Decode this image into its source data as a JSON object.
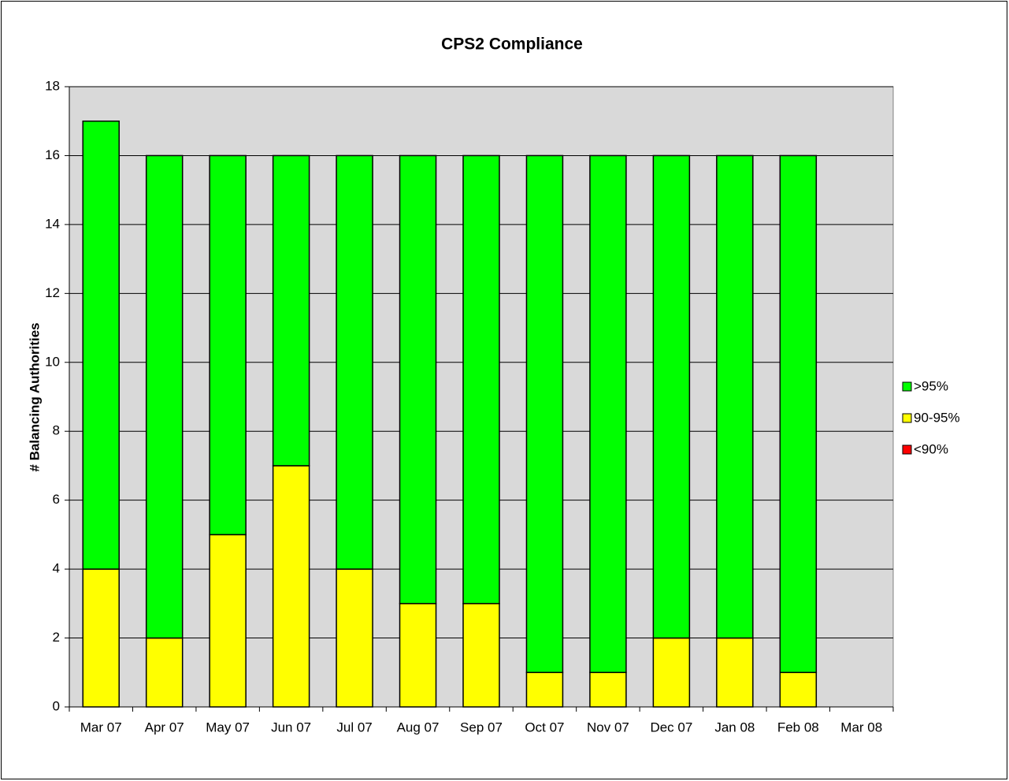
{
  "chart_data": {
    "type": "stacked_bar",
    "title": "CPS2 Compliance",
    "y_label": "# Balancing Authorities",
    "categories": [
      "Mar 07",
      "Apr 07",
      "May 07",
      "Jun 07",
      "Jul 07",
      "Aug 07",
      "Sep 07",
      "Oct 07",
      "Nov 07",
      "Dec 07",
      "Jan 08",
      "Feb 08",
      "Mar 08"
    ],
    "series": [
      {
        "name": ">95%",
        "color": "#00ff00",
        "values": [
          13,
          14,
          11,
          9,
          12,
          13,
          13,
          15,
          15,
          14,
          14,
          15,
          null
        ]
      },
      {
        "name": "90-95%",
        "color": "#ffff00",
        "values": [
          4,
          2,
          5,
          7,
          4,
          3,
          3,
          1,
          1,
          2,
          2,
          1,
          null
        ]
      },
      {
        "name": "<90%",
        "color": "#ff0000",
        "values": [
          0,
          0,
          0,
          0,
          0,
          0,
          0,
          0,
          0,
          0,
          0,
          0,
          null
        ]
      }
    ],
    "ylim": [
      0,
      18
    ],
    "yticks": [
      0,
      2,
      4,
      6,
      8,
      10,
      12,
      14,
      16,
      18
    ],
    "grid": true,
    "legend": "right"
  }
}
